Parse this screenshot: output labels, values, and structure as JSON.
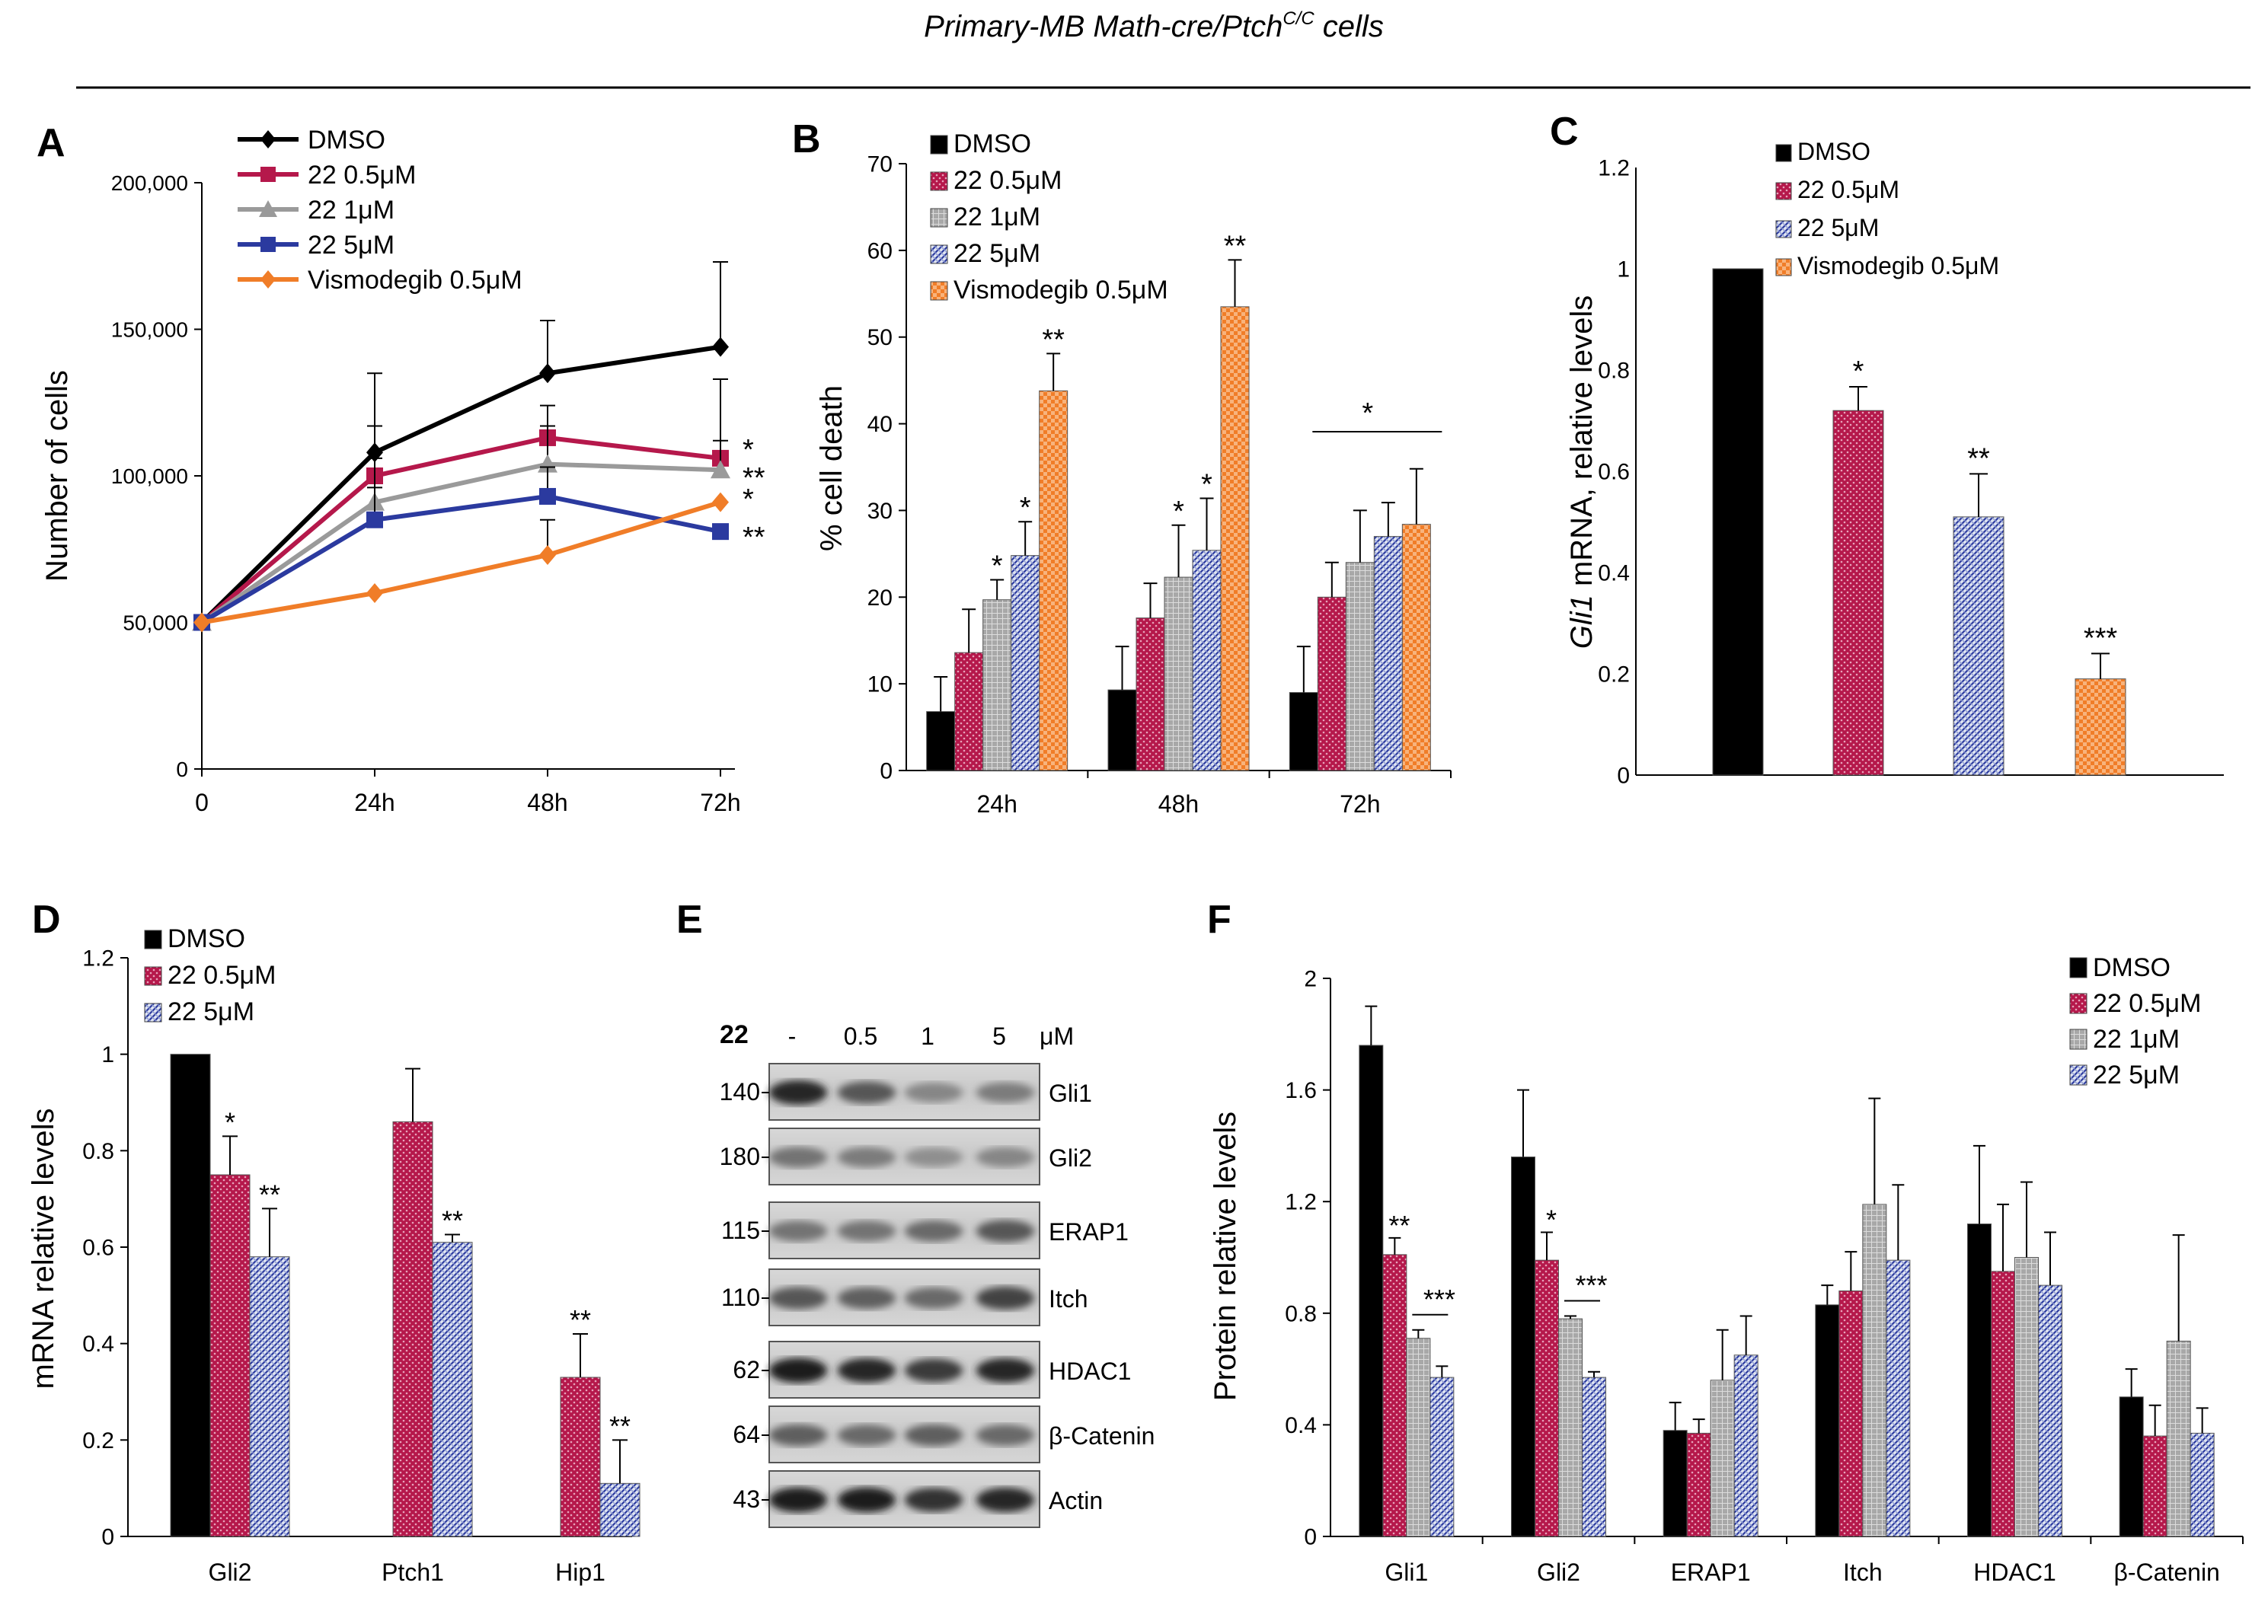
{
  "figure": {
    "title_main": "Primary-MB Math-cre/Ptch",
    "title_sup": "C/C",
    "title_end": " cells"
  },
  "colors": {
    "dmso": "#000000",
    "c05": "#b5184b",
    "c1": "#9a9a9a",
    "c5": "#2b3a9f",
    "vismo": "#f07d28"
  },
  "chart_data": [
    {
      "panel": "A",
      "type": "line",
      "ylabel": "Number of cells",
      "categories": [
        "0",
        "24h",
        "48h",
        "72h"
      ],
      "ylim": [
        0,
        200000
      ],
      "yticks": [
        "0",
        "50,000",
        "100,000",
        "150,000",
        "200,000"
      ],
      "series": [
        {
          "name": "DMSO",
          "values": [
            50000,
            108000,
            135000,
            144000
          ],
          "errors": [
            0,
            27000,
            18000,
            29000
          ],
          "marker": "diamond",
          "color": "#000000"
        },
        {
          "name": "22 0.5μM",
          "values": [
            50000,
            100000,
            113000,
            106000
          ],
          "errors": [
            0,
            17000,
            11000,
            27000
          ],
          "marker": "square",
          "color": "#b5184b"
        },
        {
          "name": "22 1μM",
          "values": [
            50000,
            91000,
            104000,
            102000
          ],
          "errors": [
            0,
            15000,
            13000,
            10000
          ],
          "marker": "triangle",
          "color": "#9a9a9a"
        },
        {
          "name": "22 5μM",
          "values": [
            50000,
            85000,
            93000,
            81000
          ],
          "errors": [
            0,
            11000,
            10000,
            0
          ],
          "marker": "square",
          "color": "#2b3a9f"
        },
        {
          "name": "Vismodegib  0.5μM",
          "values": [
            50000,
            60000,
            73000,
            91000
          ],
          "errors": [
            0,
            0,
            12000,
            0
          ],
          "marker": "diamond",
          "color": "#f07d28"
        }
      ],
      "end_annotations": [
        "*",
        "**",
        "*",
        "**"
      ]
    },
    {
      "panel": "B",
      "type": "bar",
      "ylabel": "% cell death",
      "categories": [
        "24h",
        "48h",
        "72h"
      ],
      "ylim": [
        0,
        70
      ],
      "yticks": [
        "0",
        "10",
        "20",
        "30",
        "40",
        "50",
        "60",
        "70"
      ],
      "series": [
        {
          "name": "DMSO",
          "values": [
            6.8,
            9.3,
            9.0
          ],
          "errors": [
            4.0,
            5.0,
            5.3
          ],
          "stars": [
            "",
            "",
            ""
          ],
          "pattern": "solid",
          "color": "#000000"
        },
        {
          "name": "22 0.5μM",
          "values": [
            13.6,
            17.6,
            20.0
          ],
          "errors": [
            5.0,
            4.0,
            4.0
          ],
          "stars": [
            "",
            "",
            ""
          ],
          "pattern": "dots",
          "color": "#b5184b"
        },
        {
          "name": "22 1μM",
          "values": [
            19.7,
            22.3,
            24.0
          ],
          "errors": [
            2.3,
            6.0,
            6.0
          ],
          "stars": [
            "*",
            "*",
            ""
          ],
          "pattern": "grid",
          "color": "#9a9a9a"
        },
        {
          "name": "22 5μM",
          "values": [
            24.8,
            25.4,
            27.0
          ],
          "errors": [
            3.9,
            6.0,
            3.9
          ],
          "stars": [
            "*",
            "*",
            ""
          ],
          "pattern": "diag",
          "color": "#2b3a9f"
        },
        {
          "name": "Vismodegib  0.5μM",
          "values": [
            43.8,
            53.5,
            28.4
          ],
          "errors": [
            4.3,
            5.4,
            6.4
          ],
          "stars": [
            "**",
            "**",
            ""
          ],
          "pattern": "checker",
          "color": "#f07d28"
        }
      ],
      "group_annotation": {
        "category": "72h",
        "label": "*"
      }
    },
    {
      "panel": "C",
      "type": "bar",
      "ylabel_italic": "Gli1",
      "ylabel_rest": " mRNA, relative levels",
      "categories": [
        "DMSO",
        "22 0.5μM",
        "22 5μM",
        "Vismodegib  0.5μM"
      ],
      "values": [
        1.0,
        0.72,
        0.51,
        0.19
      ],
      "errors": [
        0,
        0.047,
        0.085,
        0.05
      ],
      "stars": [
        "",
        "*",
        "**",
        "***"
      ],
      "ylim": [
        0,
        1.2
      ],
      "yticks": [
        "0",
        "0.2",
        "0.4",
        "0.6",
        "0.8",
        "1",
        "1.2"
      ],
      "legend": [
        "DMSO",
        "22 0.5μM",
        "22 5μM",
        "Vismodegib  0.5μM"
      ]
    },
    {
      "panel": "D",
      "type": "bar",
      "ylabel": "mRNA relative levels",
      "categories": [
        "Gli2",
        "Ptch1",
        "Hip1"
      ],
      "ylim": [
        0,
        1.2
      ],
      "yticks": [
        "0",
        "0.2",
        "0.4",
        "0.6",
        "0.8",
        "1",
        "1.2"
      ],
      "series": [
        {
          "name": "DMSO",
          "values": [
            1.0,
            null,
            null
          ],
          "errors": [
            0,
            0,
            0
          ],
          "stars": [
            "",
            "",
            ""
          ],
          "pattern": "solid",
          "color": "#000000"
        },
        {
          "name": "22 0.5μM",
          "values": [
            0.75,
            0.86,
            0.33
          ],
          "errors": [
            0.08,
            0.11,
            0.09
          ],
          "stars": [
            "*",
            "",
            "**"
          ],
          "pattern": "dots",
          "color": "#b5184b"
        },
        {
          "name": "22 5μM",
          "values": [
            0.58,
            0.61,
            0.11
          ],
          "errors": [
            0.1,
            0.016,
            0.09
          ],
          "stars": [
            "**",
            "**",
            "**"
          ],
          "pattern": "diag",
          "color": "#2b3a9f"
        }
      ]
    },
    {
      "panel": "F",
      "type": "bar",
      "ylabel": "Protein relative levels",
      "categories": [
        "Gli1",
        "Gli2",
        "ERAP1",
        "Itch",
        "HDAC1",
        "β-Catenin"
      ],
      "ylim": [
        0,
        2
      ],
      "yticks": [
        "0",
        "0.4",
        "0.8",
        "1.2",
        "1.6",
        "2"
      ],
      "series": [
        {
          "name": "DMSO",
          "values": [
            1.76,
            1.36,
            0.38,
            0.83,
            1.12,
            0.5
          ],
          "errors": [
            0.14,
            0.24,
            0.1,
            0.07,
            0.28,
            0.1
          ],
          "stars": [
            "",
            "",
            "",
            "",
            "",
            ""
          ],
          "pattern": "solid",
          "color": "#000000"
        },
        {
          "name": "22 0.5μM",
          "values": [
            1.01,
            0.99,
            0.37,
            0.88,
            0.95,
            0.36
          ],
          "errors": [
            0.06,
            0.1,
            0.05,
            0.14,
            0.24,
            0.11
          ],
          "stars": [
            "**",
            "*",
            "",
            "",
            "",
            ""
          ],
          "pattern": "dots",
          "color": "#b5184b"
        },
        {
          "name": "22 1μM",
          "values": [
            0.71,
            0.78,
            0.56,
            1.19,
            1.0,
            0.7
          ],
          "errors": [
            0.03,
            0.01,
            0.18,
            0.38,
            0.27,
            0.38
          ],
          "stars": [
            "",
            "",
            "",
            "",
            "",
            ""
          ],
          "pattern": "grid",
          "color": "#9a9a9a"
        },
        {
          "name": "22 5μM",
          "values": [
            0.57,
            0.57,
            0.65,
            0.99,
            0.9,
            0.37
          ],
          "errors": [
            0.04,
            0.02,
            0.14,
            0.27,
            0.19,
            0.09
          ],
          "stars": [
            "",
            "",
            "",
            "",
            "",
            ""
          ],
          "pattern": "diag",
          "color": "#2b3a9f"
        }
      ],
      "bracket_labels": [
        "***",
        "***"
      ]
    }
  ],
  "western": {
    "panel": "E",
    "compound": "22",
    "lanes": [
      "-",
      "0.5",
      "1",
      "5"
    ],
    "unit": "μM",
    "rows": [
      {
        "mw": "140",
        "label": "Gli1",
        "intensity": [
          0.85,
          0.6,
          0.35,
          0.4
        ]
      },
      {
        "mw": "180",
        "label": "Gli2",
        "intensity": [
          0.45,
          0.4,
          0.3,
          0.35
        ]
      },
      {
        "mw": "115",
        "label": "ERAP1",
        "intensity": [
          0.45,
          0.45,
          0.5,
          0.6
        ]
      },
      {
        "mw": "110",
        "label": "Itch",
        "intensity": [
          0.6,
          0.55,
          0.5,
          0.7
        ]
      },
      {
        "mw": "62",
        "label": "HDAC1",
        "intensity": [
          0.9,
          0.85,
          0.75,
          0.85
        ]
      },
      {
        "mw": "64",
        "label": "β-Catenin",
        "intensity": [
          0.55,
          0.5,
          0.55,
          0.5
        ]
      },
      {
        "mw": "43",
        "label": "Actin",
        "intensity": [
          0.9,
          0.9,
          0.8,
          0.85
        ]
      }
    ]
  }
}
